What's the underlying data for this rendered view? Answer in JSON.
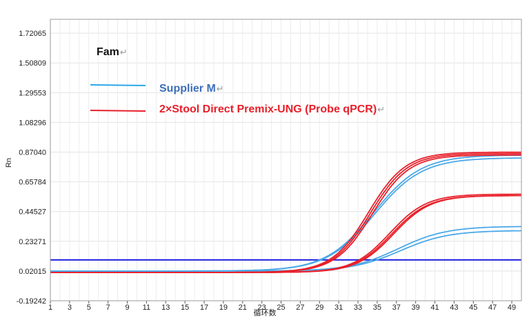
{
  "chart_data": {
    "type": "line",
    "xlabel": "循环数",
    "ylabel": "Rn",
    "xlim": [
      1,
      50
    ],
    "ylim": [
      -0.19242,
      1.82
    ],
    "x_ticks": [
      1,
      3,
      5,
      7,
      9,
      11,
      13,
      15,
      17,
      19,
      21,
      23,
      25,
      27,
      29,
      31,
      33,
      35,
      37,
      39,
      41,
      43,
      45,
      47,
      49
    ],
    "y_tick_labels": [
      "-0.19242",
      "0.02015",
      "0.23271",
      "0.44527",
      "0.65784",
      "0.87040",
      "1.08296",
      "1.29553",
      "1.50809",
      "1.72065"
    ],
    "grid": true,
    "threshold": 0.1,
    "legend": {
      "title": "Fam",
      "entries": [
        {
          "label": "Supplier M",
          "color": "#2aa8e8",
          "text_color": "#3d6fb8"
        },
        {
          "label": "2×Stool Direct Premix-UNG (Probe qPCR)",
          "color": "#e8202a",
          "text_color": "#e8202a"
        }
      ]
    },
    "series": [
      {
        "name": "Supplier M",
        "color": "#4aa8e8",
        "plateau": 0.85,
        "midpoint": 34.6,
        "slope": 0.4,
        "start": 0.02
      },
      {
        "name": "Supplier M",
        "color": "#4aa8e8",
        "plateau": 0.83,
        "midpoint": 34.7,
        "slope": 0.4,
        "start": 0.02
      },
      {
        "name": "Supplier M",
        "color": "#4aa8e8",
        "plateau": 0.34,
        "midpoint": 37.2,
        "slope": 0.4,
        "start": 0.02
      },
      {
        "name": "Supplier M",
        "color": "#4aa8e8",
        "plateau": 0.31,
        "midpoint": 37.4,
        "slope": 0.4,
        "start": 0.02
      },
      {
        "name": "2×Stool Direct Premix-UNG (Probe qPCR)",
        "color": "#e8202a",
        "plateau": 0.87,
        "midpoint": 34.1,
        "slope": 0.52,
        "start": 0.01
      },
      {
        "name": "2×Stool Direct Premix-UNG (Probe qPCR)",
        "color": "#e8202a",
        "plateau": 0.86,
        "midpoint": 34.3,
        "slope": 0.52,
        "start": 0.01
      },
      {
        "name": "2×Stool Direct Premix-UNG (Probe qPCR)",
        "color": "#e8202a",
        "plateau": 0.85,
        "midpoint": 34.5,
        "slope": 0.52,
        "start": 0.01
      },
      {
        "name": "2×Stool Direct Premix-UNG (Probe qPCR)",
        "color": "#e8202a",
        "plateau": 0.57,
        "midpoint": 36.3,
        "slope": 0.52,
        "start": 0.01
      },
      {
        "name": "2×Stool Direct Premix-UNG (Probe qPCR)",
        "color": "#e8202a",
        "plateau": 0.56,
        "midpoint": 36.5,
        "slope": 0.52,
        "start": 0.01
      },
      {
        "name": "2×Stool Direct Premix-UNG (Probe qPCR)",
        "color": "#e8202a",
        "plateau": 0.56,
        "midpoint": 36.7,
        "slope": 0.52,
        "start": 0.01
      }
    ]
  }
}
